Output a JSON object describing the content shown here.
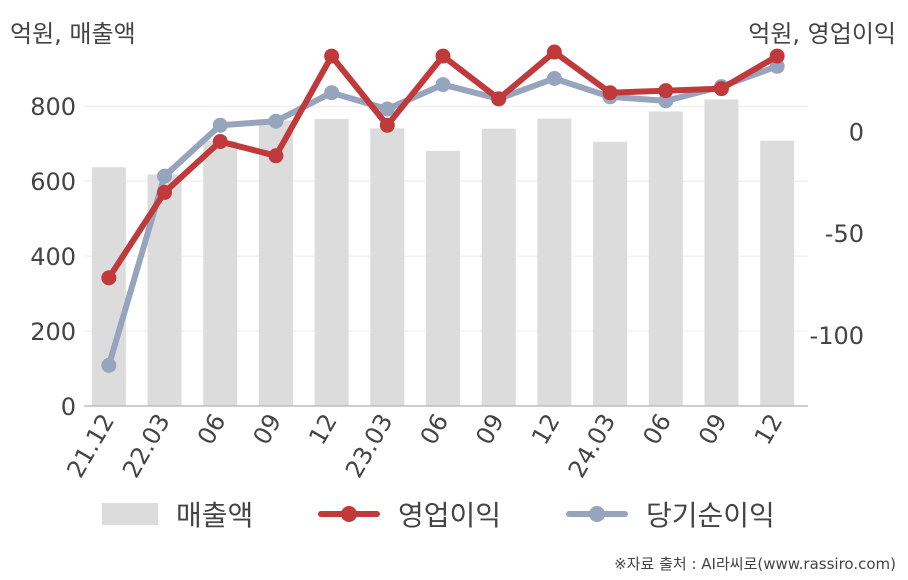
{
  "chart_data": {
    "type": "bar+line",
    "categories": [
      "21.12",
      "22.03",
      "06",
      "09",
      "12",
      "23.03",
      "06",
      "09",
      "12",
      "24.03",
      "06",
      "09",
      "12"
    ],
    "y_left_label": "억원, 매출액",
    "y_right_label": "억원, 영업이익",
    "y_left_ticks": [
      "0",
      "200",
      "400",
      "600",
      "800"
    ],
    "y_right_ticks": [
      "0",
      "-50",
      "-100"
    ],
    "y_left_range": [
      0,
      950
    ],
    "y_right_range": [
      -135,
      40
    ],
    "grid": true,
    "legend_position": "bottom",
    "series": [
      {
        "name": "매출액",
        "type": "bar",
        "axis": "left",
        "color": "#dcdcdc",
        "values": [
          637,
          618,
          707,
          762,
          766,
          741,
          681,
          740,
          767,
          705,
          786,
          818,
          708
        ]
      },
      {
        "name": "영업이익",
        "type": "line",
        "axis": "right",
        "color": "#c0393b",
        "values": [
          -72,
          -30,
          -5,
          -12,
          37,
          3,
          37,
          16,
          39,
          19,
          20,
          21,
          37
        ]
      },
      {
        "name": "당기순이익",
        "type": "line",
        "axis": "right",
        "color": "#97a4bd",
        "values": [
          -115,
          -22,
          3,
          5,
          19,
          11,
          23,
          16,
          26,
          17,
          15,
          22,
          32
        ]
      }
    ]
  },
  "source": "※자료 출처 : AI라씨로(www.rassiro.com)"
}
